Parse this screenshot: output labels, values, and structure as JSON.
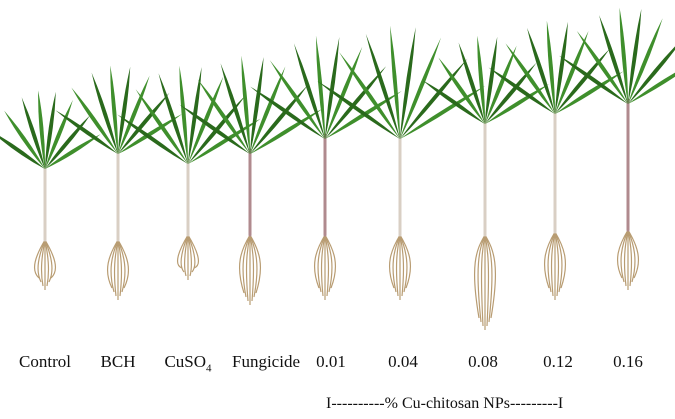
{
  "figure": {
    "treatments": [
      {
        "label": "Control"
      },
      {
        "label": "BCH"
      },
      {
        "label": "CuSO",
        "subscript": "4"
      },
      {
        "label": "Fungicide"
      },
      {
        "label": "0.01"
      },
      {
        "label": "0.04"
      },
      {
        "label": "0.08"
      },
      {
        "label": "0.12"
      },
      {
        "label": "0.16"
      }
    ],
    "range_label": "I----------% Cu-chitosan NPs---------I",
    "colors": {
      "leaf": "#3f8f2c",
      "leaf_dark": "#2a6a1c",
      "stem": "#d9cfc4",
      "stem_purple": "#b08a8e",
      "root": "#b89c72"
    }
  }
}
